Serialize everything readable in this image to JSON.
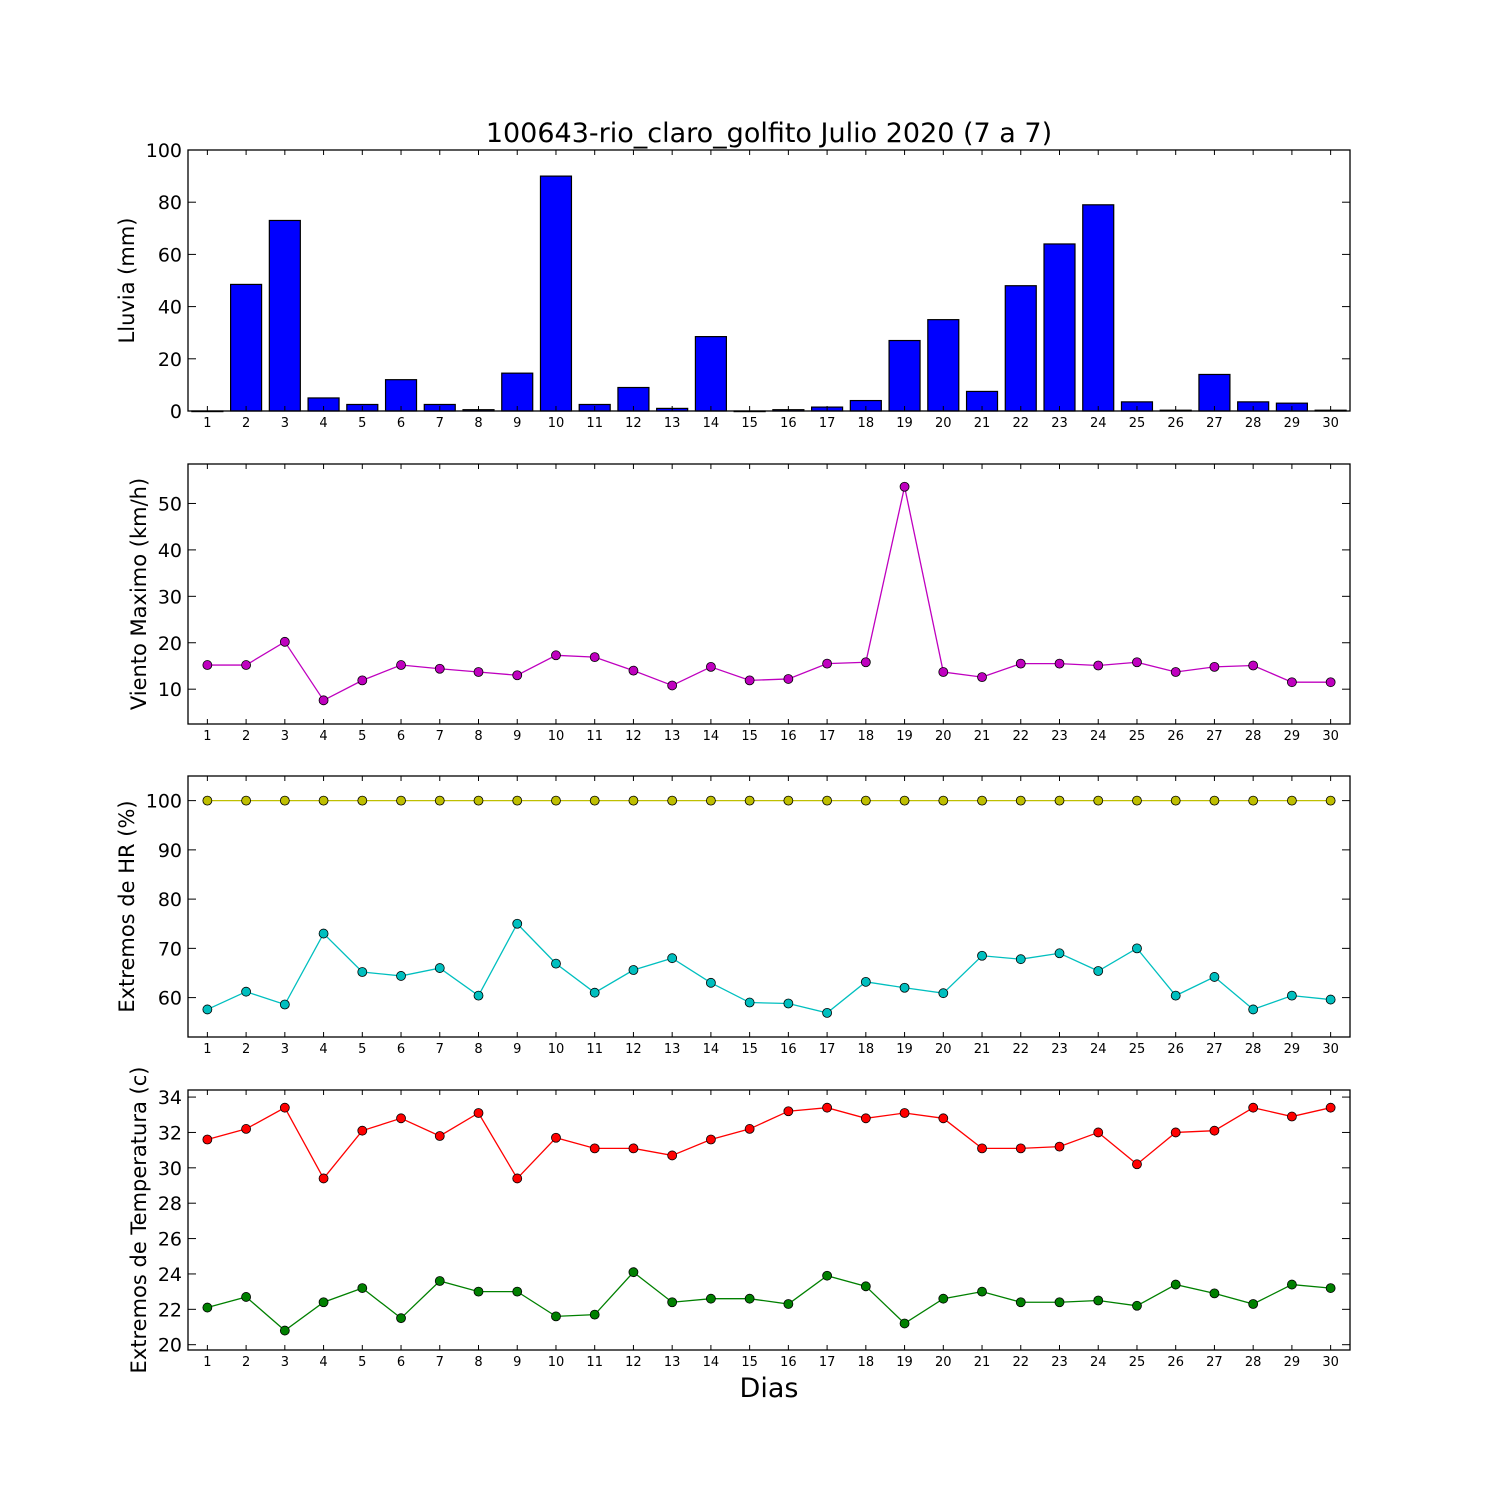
{
  "chart_data": {
    "title": "100643-rio_claro_golfito Julio 2020  (7 a 7)",
    "xlabel": "Dias",
    "days": [
      1,
      2,
      3,
      4,
      5,
      6,
      7,
      8,
      9,
      10,
      11,
      12,
      13,
      14,
      15,
      16,
      17,
      18,
      19,
      20,
      21,
      22,
      23,
      24,
      25,
      26,
      27,
      28,
      29,
      30
    ],
    "panels": [
      {
        "type": "bar",
        "ylabel": "Lluvia (mm)",
        "ylim": [
          0,
          100
        ],
        "yticks": [
          0,
          20,
          40,
          60,
          80,
          100
        ],
        "series": [
          {
            "color": "#0000ff",
            "values": [
              0,
              48.5,
              73,
              5,
              2.5,
              12,
              2.5,
              0.5,
              14.5,
              90,
              2.5,
              9,
              1,
              28.5,
              0,
              0.5,
              1.5,
              4,
              27,
              35,
              7.5,
              48,
              64,
              79,
              3.5,
              0.3,
              14,
              3.5,
              3,
              0.3
            ]
          }
        ]
      },
      {
        "type": "line",
        "ylabel": "Viento Maximo (km/h)",
        "ylim": [
          2.5,
          58.5
        ],
        "yticks": [
          10,
          20,
          30,
          40,
          50
        ],
        "series": [
          {
            "color": "#bf00bf",
            "values": [
              15.2,
              15.2,
              20.2,
              7.6,
              11.9,
              15.2,
              14.4,
              13.7,
              13,
              17.3,
              16.9,
              14,
              10.8,
              14.8,
              11.9,
              12.2,
              15.5,
              15.8,
              53.6,
              13.7,
              12.6,
              15.5,
              15.5,
              15.1,
              15.8,
              13.7,
              14.8,
              15.1,
              11.5,
              11.5
            ]
          }
        ]
      },
      {
        "type": "line",
        "ylabel": "Extremos de HR (%)",
        "ylim": [
          52,
          105
        ],
        "yticks": [
          60,
          70,
          80,
          90,
          100
        ],
        "series": [
          {
            "color": "#bfbf00",
            "values": [
              100,
              100,
              100,
              100,
              100,
              100,
              100,
              100,
              100,
              100,
              100,
              100,
              100,
              100,
              100,
              100,
              100,
              100,
              100,
              100,
              100,
              100,
              100,
              100,
              100,
              100,
              100,
              100,
              100,
              100
            ]
          },
          {
            "color": "#00bfbf",
            "values": [
              57.6,
              61.2,
              58.6,
              73,
              65.2,
              64.4,
              66,
              60.4,
              75,
              66.9,
              61,
              65.6,
              68,
              63,
              59,
              58.8,
              56.9,
              63.2,
              62,
              60.9,
              68.5,
              67.8,
              69,
              65.4,
              70,
              60.4,
              64.2,
              57.6,
              60.4,
              59.6
            ]
          }
        ]
      },
      {
        "type": "line",
        "ylabel": "Extremos de Temperatura (c)",
        "ylim": [
          19.7,
          34.4
        ],
        "yticks": [
          20,
          22,
          24,
          26,
          28,
          30,
          32,
          34
        ],
        "series": [
          {
            "color": "#ff0000",
            "values": [
              31.6,
              32.2,
              33.4,
              29.4,
              32.1,
              32.8,
              31.8,
              33.1,
              29.4,
              31.7,
              31.1,
              31.1,
              30.7,
              31.6,
              32.2,
              33.2,
              33.4,
              32.8,
              33.1,
              32.8,
              31.1,
              31.1,
              31.2,
              32,
              30.2,
              32,
              32.1,
              33.4,
              32.9,
              33.4
            ]
          },
          {
            "color": "#008000",
            "values": [
              22.1,
              22.7,
              20.8,
              22.4,
              23.2,
              21.5,
              23.6,
              23,
              23,
              21.6,
              21.7,
              24.1,
              22.4,
              22.6,
              22.6,
              22.3,
              23.9,
              23.3,
              21.2,
              22.6,
              23,
              22.4,
              22.4,
              22.5,
              22.2,
              23.4,
              22.9,
              22.3,
              23.4,
              23.2
            ]
          }
        ]
      }
    ]
  }
}
